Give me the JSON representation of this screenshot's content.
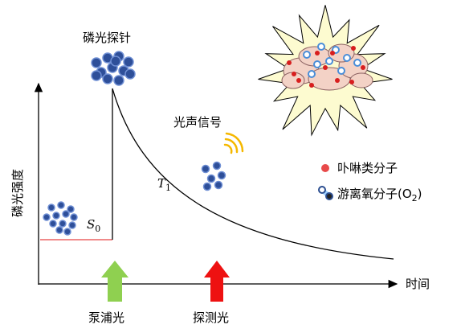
{
  "labels": {
    "probe": "磷光探针",
    "signal": "光声信号",
    "t1": {
      "main": "T",
      "sub": "1"
    },
    "s0": {
      "main": "S",
      "sub": "0"
    },
    "y_axis": "磷光强度",
    "x_axis": "时间",
    "pump": "泵浦光",
    "detect": "探测光"
  },
  "legend": {
    "porphyrin": "卟啉类分子",
    "oxygen": {
      "before": "游离氧分子(O",
      "sub": "2",
      "after": ")"
    }
  }
}
